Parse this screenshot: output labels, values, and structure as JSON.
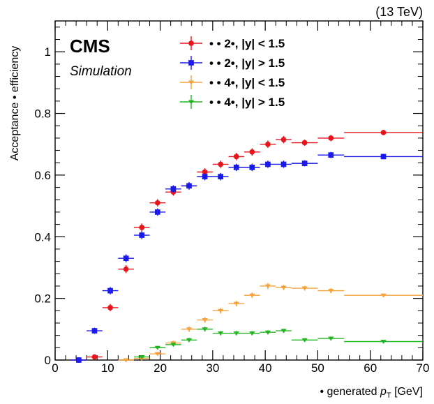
{
  "header": {
    "energy_label": "(13 TeV)"
  },
  "experiment": {
    "name": "CMS",
    "subtitle": "Simulation"
  },
  "chart_data": {
    "type": "scatter",
    "title": "",
    "xlabel": "• generated p_T [GeV]",
    "xlabel_parts": {
      "prefix": "• generated ",
      "var": "p",
      "sub": "T",
      "suffix": " [GeV]"
    },
    "ylabel": "Acceptance • efficiency",
    "xlim": [
      0,
      70
    ],
    "ylim": [
      0,
      1.1
    ],
    "xticks": [
      "0",
      "10",
      "20",
      "30",
      "40",
      "50",
      "60",
      "70"
    ],
    "yticks": [
      "0",
      "0.2",
      "0.4",
      "0.6",
      "0.8",
      "1"
    ],
    "grid": false,
    "legend_position": "top-left",
    "series": [
      {
        "name": "• •  2•, |y| < 1.5",
        "color": "#e8141b",
        "marker": "circle",
        "x": [
          4.5,
          7.5,
          10.5,
          13.5,
          16.5,
          19.5,
          22.5,
          25.5,
          28.5,
          31.5,
          34.5,
          37.5,
          40.5,
          43.5,
          47.5,
          52.5,
          62.5
        ],
        "xerr": [
          1.5,
          1.5,
          1.5,
          1.5,
          1.5,
          1.5,
          1.5,
          1.5,
          1.5,
          1.5,
          1.5,
          1.5,
          1.5,
          1.5,
          2.5,
          2.5,
          7.5
        ],
        "y": [
          0.0,
          0.01,
          0.17,
          0.295,
          0.43,
          0.51,
          0.545,
          0.565,
          0.61,
          0.635,
          0.66,
          0.675,
          0.7,
          0.715,
          0.705,
          0.72,
          0.738
        ],
        "yerr": [
          0.004,
          0.008,
          0.012,
          0.013,
          0.013,
          0.012,
          0.012,
          0.012,
          0.012,
          0.012,
          0.012,
          0.012,
          0.012,
          0.012,
          0.01,
          0.01,
          0.008
        ]
      },
      {
        "name": "• •  2•, |y| > 1.5",
        "color": "#1a1aeb",
        "marker": "square",
        "x": [
          4.5,
          7.5,
          10.5,
          13.5,
          16.5,
          19.5,
          22.5,
          25.5,
          28.5,
          31.5,
          34.5,
          37.5,
          40.5,
          43.5,
          47.5,
          52.5,
          62.5
        ],
        "xerr": [
          1.5,
          1.5,
          1.5,
          1.5,
          1.5,
          1.5,
          1.5,
          1.5,
          1.5,
          1.5,
          1.5,
          1.5,
          1.5,
          1.5,
          2.5,
          2.5,
          7.5
        ],
        "y": [
          0.0,
          0.095,
          0.225,
          0.33,
          0.405,
          0.48,
          0.555,
          0.565,
          0.595,
          0.595,
          0.625,
          0.625,
          0.635,
          0.635,
          0.638,
          0.665,
          0.66
        ],
        "yerr": [
          0.004,
          0.01,
          0.012,
          0.013,
          0.013,
          0.012,
          0.012,
          0.012,
          0.012,
          0.012,
          0.012,
          0.012,
          0.012,
          0.012,
          0.01,
          0.01,
          0.008
        ]
      },
      {
        "name": "• •  4•, |y| < 1.5",
        "color": "#f6a33f",
        "marker": "triangle-down",
        "x": [
          13.5,
          16.5,
          19.5,
          22.5,
          25.5,
          28.5,
          31.5,
          34.5,
          37.5,
          40.5,
          43.5,
          47.5,
          52.5,
          62.5
        ],
        "xerr": [
          1.5,
          1.5,
          1.5,
          1.5,
          1.5,
          1.5,
          1.5,
          1.5,
          1.5,
          1.5,
          1.5,
          2.5,
          2.5,
          7.5
        ],
        "y": [
          0.0,
          0.005,
          0.02,
          0.055,
          0.1,
          0.13,
          0.16,
          0.183,
          0.21,
          0.24,
          0.235,
          0.233,
          0.225,
          0.21
        ],
        "yerr": [
          0.003,
          0.004,
          0.006,
          0.008,
          0.009,
          0.009,
          0.009,
          0.009,
          0.009,
          0.01,
          0.009,
          0.008,
          0.008,
          0.006
        ]
      },
      {
        "name": "• •  4•, |y| > 1.5",
        "color": "#22b522",
        "marker": "triangle-down",
        "x": [
          16.5,
          19.5,
          22.5,
          25.5,
          28.5,
          31.5,
          34.5,
          37.5,
          40.5,
          43.5,
          47.5,
          52.5,
          62.5
        ],
        "xerr": [
          1.5,
          1.5,
          1.5,
          1.5,
          1.5,
          1.5,
          1.5,
          1.5,
          1.5,
          1.5,
          2.5,
          2.5,
          7.5
        ],
        "y": [
          0.01,
          0.04,
          0.05,
          0.065,
          0.1,
          0.087,
          0.087,
          0.087,
          0.09,
          0.095,
          0.065,
          0.07,
          0.06
        ],
        "yerr": [
          0.004,
          0.006,
          0.006,
          0.007,
          0.008,
          0.007,
          0.007,
          0.007,
          0.007,
          0.007,
          0.006,
          0.006,
          0.005
        ]
      }
    ]
  }
}
